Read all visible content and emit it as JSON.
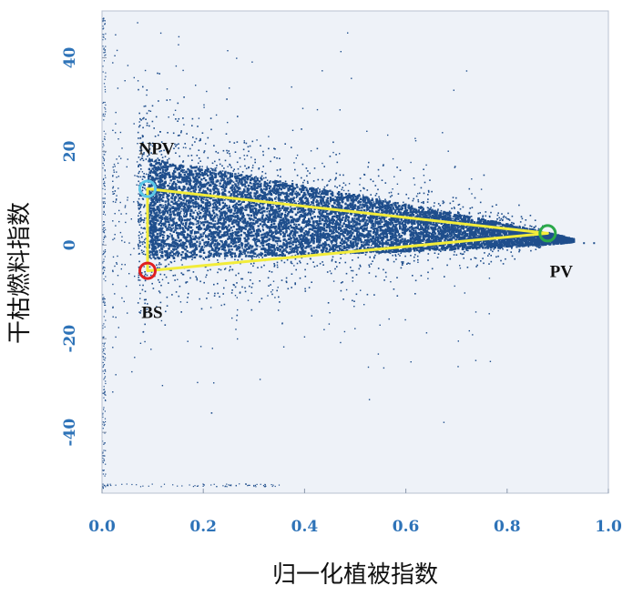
{
  "chart_data": {
    "type": "scatter",
    "xlabel": "归一化植被指数",
    "ylabel": "干枯燃料指数",
    "xlim": [
      0.0,
      1.0
    ],
    "ylim": [
      -53,
      50
    ],
    "x_ticks": [
      "0.0",
      "0.2",
      "0.4",
      "0.6",
      "0.8",
      "1.0"
    ],
    "y_ticks": [
      "40",
      "20",
      "0",
      "-20",
      "-40"
    ],
    "grid": false,
    "point_color": "#1f4e8c",
    "plot_background": "#eef2f8",
    "endmembers": [
      {
        "name": "NPV",
        "label": "NPV",
        "x": 0.09,
        "y": 12,
        "color": "#5bc8e8"
      },
      {
        "name": "BS",
        "label": "BS",
        "x": 0.09,
        "y": -5.5,
        "color": "#e02020"
      },
      {
        "name": "PV",
        "label": "PV",
        "x": 0.88,
        "y": 2.5,
        "color": "#2aa84a"
      }
    ],
    "triangle": {
      "vertices": [
        "NPV",
        "PV",
        "BS"
      ],
      "color": "#f2ec3a"
    }
  }
}
